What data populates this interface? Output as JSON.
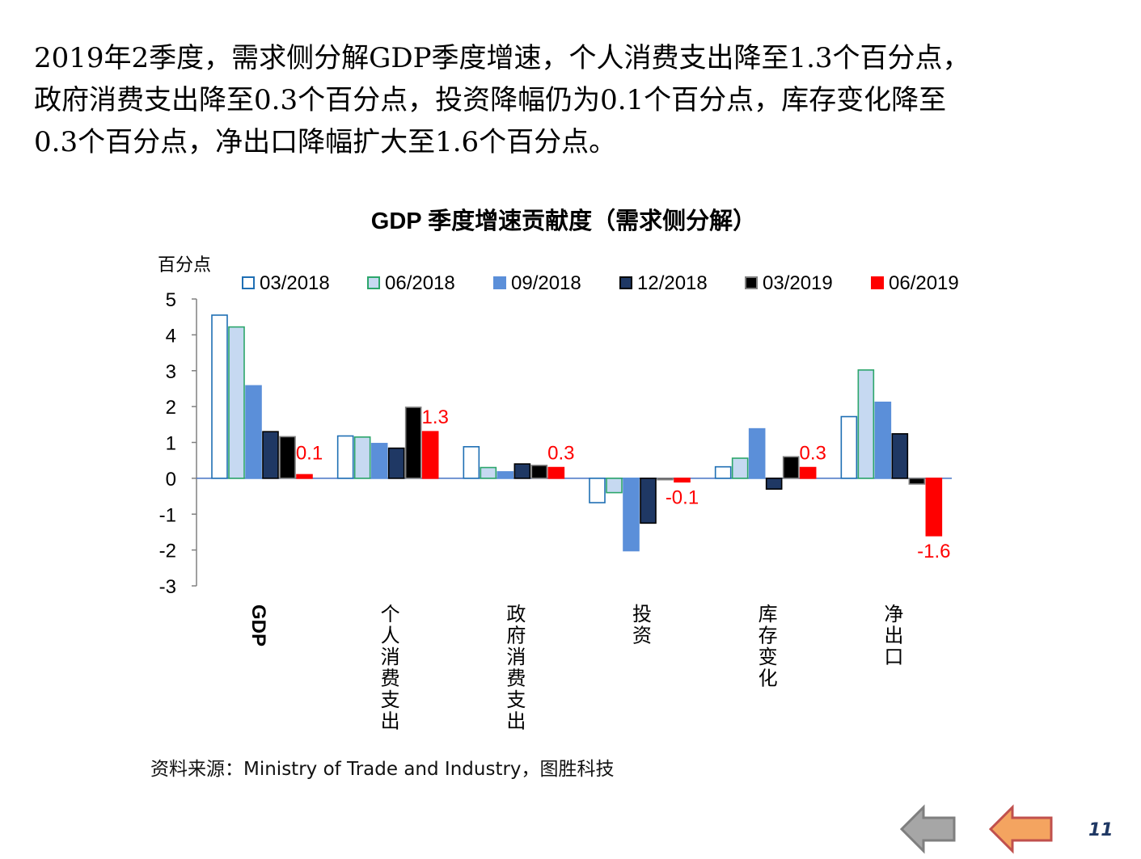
{
  "intro": {
    "line1": "2019年2季度，需求侧分解GDP季度增速，个人消费支出降至1.3个百分点，",
    "line2": "政府消费支出降至0.3个百分点，投资降幅仍为0.1个百分点，库存变化降至",
    "line3": "0.3个百分点，净出口降幅扩大至1.6个百分点。"
  },
  "chart_data": {
    "type": "bar",
    "title": "GDP 季度增速贡献度（需求侧分解）",
    "ylabel": "百分点",
    "ylim": [
      -3,
      5
    ],
    "yticks": [
      "5",
      "4",
      "3",
      "2",
      "1",
      "0",
      "-1",
      "-2",
      "-3"
    ],
    "categories": [
      "GDP",
      "个人消费支出",
      "政府消费支出",
      "投资",
      "库存变化",
      "净出口"
    ],
    "series": [
      {
        "name": "03/2018",
        "values": [
          4.55,
          1.18,
          0.88,
          -0.68,
          0.32,
          1.72
        ],
        "fill": "#FFFFFF",
        "stroke": "#1F6FB4"
      },
      {
        "name": "06/2018",
        "values": [
          4.22,
          1.15,
          0.3,
          -0.4,
          0.56,
          3.02
        ],
        "fill": "#C6D9F1",
        "stroke": "#2CA66B"
      },
      {
        "name": "09/2018",
        "values": [
          2.58,
          0.97,
          0.18,
          -2.02,
          1.38,
          2.12
        ],
        "fill": "#5B8FD9",
        "stroke": "#5B8FD9"
      },
      {
        "name": "12/2018",
        "values": [
          1.3,
          0.84,
          0.4,
          -1.25,
          -0.3,
          1.24
        ],
        "fill": "#1F3864",
        "stroke": "#000000"
      },
      {
        "name": "03/2019",
        "values": [
          1.16,
          1.98,
          0.36,
          -0.04,
          0.6,
          -0.16
        ],
        "fill": "#000000",
        "stroke": "#7F7F7F"
      },
      {
        "name": "06/2019",
        "values": [
          0.1,
          1.3,
          0.3,
          -0.1,
          0.3,
          -1.6
        ],
        "fill": "#FF0000",
        "stroke": "#FF0000"
      }
    ],
    "data_labels": [
      "0.1",
      "1.3",
      "0.3",
      "-0.1",
      "0.3",
      "-1.6"
    ],
    "label_color": "#FF0000",
    "legend_position": "top"
  },
  "source": "资料来源：Ministry of Trade and Industry，图胜科技",
  "page_number": "11",
  "nav": {
    "back_color": "#A6A6A6",
    "home_color": "#F4A460"
  }
}
